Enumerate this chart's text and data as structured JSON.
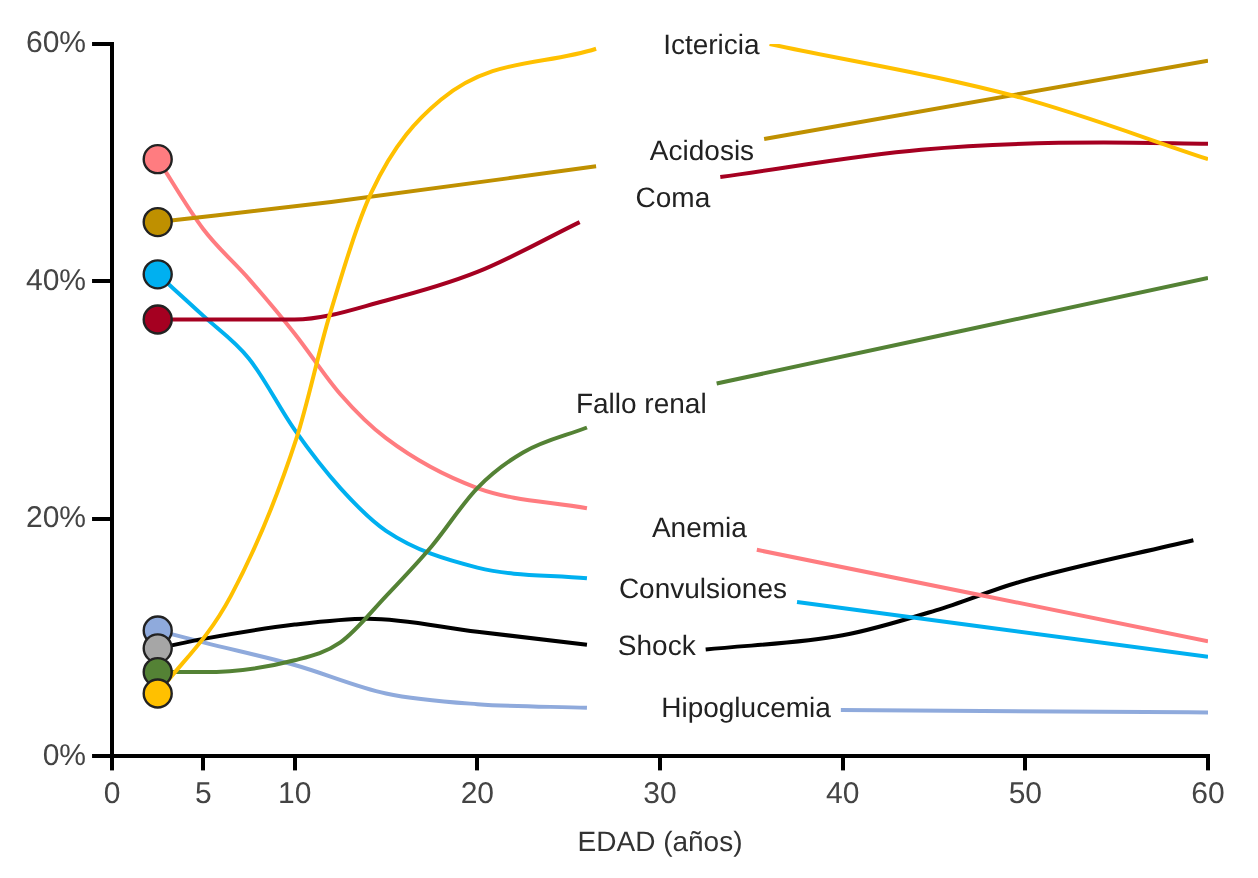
{
  "chart_data": {
    "type": "line",
    "xlabel": "EDAD (años)",
    "xlim": [
      0,
      60
    ],
    "xticks": [
      0,
      5,
      10,
      20,
      30,
      40,
      50,
      60
    ],
    "ylim": [
      0,
      60
    ],
    "yticks": [
      {
        "value": 0,
        "label": "0%"
      },
      {
        "value": 20,
        "label": "20%"
      },
      {
        "value": 40,
        "label": "40%"
      },
      {
        "value": 60,
        "label": "60%"
      }
    ],
    "grid": false,
    "legend": false,
    "marker": "none",
    "series": [
      {
        "name": "Ictericia",
        "color": "#ffc000",
        "x": [
          2.5,
          6.5,
          10.1,
          11.9,
          14.2,
          18,
          26.5,
          31.2,
          36,
          49.7,
          60
        ],
        "values": [
          5.3,
          13.5,
          26.8,
          37.1,
          47.5,
          55.3,
          59.6,
          null,
          60,
          55.5,
          50.3
        ]
      },
      {
        "name": "Acidosis",
        "color": "#bf9000",
        "x": [
          2.5,
          12,
          26.5,
          30.9,
          35.7,
          60
        ],
        "values": [
          45,
          46.7,
          49.7,
          null,
          52,
          58.6
        ]
      },
      {
        "name": "Coma",
        "color": "#a50021",
        "x": [
          2.5,
          10,
          15,
          20,
          25.6,
          29.6,
          33.3,
          44.3,
          54.3,
          60
        ],
        "values": [
          36.8,
          36.8,
          38.4,
          40.8,
          45,
          null,
          48.8,
          51.1,
          51.7,
          51.6
        ]
      },
      {
        "name": "Fallo renal",
        "color": "#548235",
        "x": [
          2.5,
          5,
          10,
          12.5,
          15,
          17.5,
          20,
          22.5,
          26,
          29.2,
          33.1,
          60
        ],
        "values": [
          7.1,
          7.1,
          8.1,
          9.6,
          13.5,
          17.7,
          22.6,
          25.6,
          27.7,
          null,
          31.4,
          40.3
        ]
      },
      {
        "name": "Anemia",
        "color": "#ff7c80",
        "x": [
          2.5,
          5,
          7.5,
          10,
          12.5,
          15,
          20,
          26,
          30.7,
          35.3,
          60
        ],
        "values": [
          50.3,
          44.4,
          40.2,
          35.6,
          30.5,
          26.8,
          22.6,
          20.9,
          null,
          17.4,
          9.7
        ]
      },
      {
        "name": "Convulsiones",
        "color": "#00b0f0",
        "x": [
          2.5,
          5,
          7.5,
          10,
          12.5,
          15,
          20,
          26,
          31.9,
          37.5,
          60
        ],
        "values": [
          40.6,
          37.1,
          33.5,
          27.5,
          22.6,
          19,
          15.9,
          15,
          null,
          13,
          8.4
        ]
      },
      {
        "name": "Shock",
        "color": "#000000",
        "x": [
          2.5,
          5,
          10,
          14,
          20,
          26,
          29.2,
          32.5,
          40,
          45.1,
          49.7,
          59.2
        ],
        "values": [
          9.1,
          9.9,
          11.1,
          11.6,
          10.5,
          9.4,
          null,
          9,
          10.2,
          12.3,
          14.7,
          18.2
        ]
      },
      {
        "name": "Hipoglucemia",
        "color": "#8faadc",
        "x": [
          2.5,
          5,
          10,
          15,
          20,
          26,
          33,
          39.9,
          60
        ],
        "values": [
          10.6,
          9.6,
          7.7,
          5.3,
          4.4,
          4.1,
          null,
          3.9,
          3.7
        ]
      },
      {
        "type": "scatter",
        "marker": "circle",
        "x": [
          2.5,
          2.5,
          2.5,
          2.5,
          2.5,
          2.5,
          2.5,
          2.5
        ],
        "values": [
          50.3,
          45,
          40.6,
          36.8,
          10.6,
          9.1,
          7.1,
          5.3
        ],
        "colors": [
          "#ff7c80",
          "#bf9000",
          "#00b0f0",
          "#a50021",
          "#8faadc",
          "#a6a6a6",
          "#548235",
          "#ffc000"
        ]
      }
    ]
  }
}
